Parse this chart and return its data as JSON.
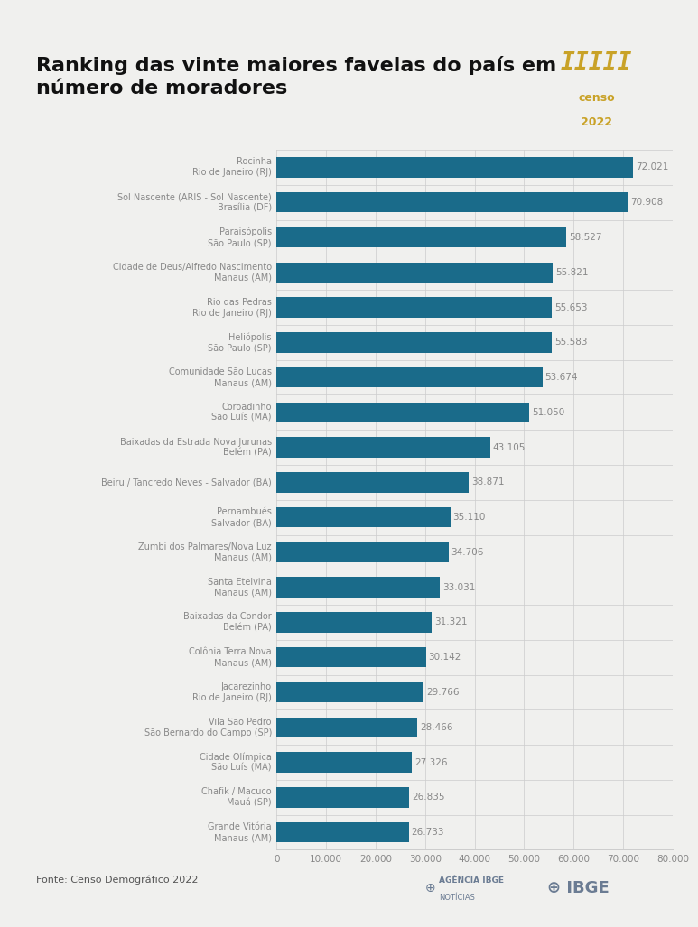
{
  "title": "Ranking das vinte maiores favelas do país em\nnúmero de moradores",
  "title_fontsize": 16,
  "bar_color": "#1a6b8a",
  "value_color": "#888888",
  "label_color": "#888888",
  "bg_color": "#f0f0ee",
  "fonte": "Fonte: Censo Demográfico 2022",
  "categories": [
    "Rocinha\nRio de Janeiro (RJ)",
    "Sol Nascente (ARIS - Sol Nascente)\nBrasília (DF)",
    "Paraisópolis\nSão Paulo (SP)",
    "Cidade de Deus/Alfredo Nascimento\nManaus (AM)",
    "Rio das Pedras\nRio de Janeiro (RJ)",
    "Heliópolis\nSão Paulo (SP)",
    "Comunidade São Lucas\nManaus (AM)",
    "Coroadinho\nSão Luís (MA)",
    "Baixadas da Estrada Nova Jurunas\nBelém (PA)",
    "Beiru / Tancredo Neves - Salvador (BA)",
    "Pernambués\nSalvador (BA)",
    "Zumbi dos Palmares/Nova Luz\nManaus (AM)",
    "Santa Etelvina\nManaus (AM)",
    "Baixadas da Condor\nBelém (PA)",
    "Colônia Terra Nova\nManaus (AM)",
    "Jacarezinho\nRio de Janeiro (RJ)",
    "Vila São Pedro\nSão Bernardo do Campo (SP)",
    "Cidade Olímpica\nSão Luís (MA)",
    "Chafik / Macuco\nMauá (SP)",
    "Grande Vitória\nManaus (AM)"
  ],
  "values": [
    72021,
    70908,
    58527,
    55821,
    55653,
    55583,
    53674,
    51050,
    43105,
    38871,
    35110,
    34706,
    33031,
    31321,
    30142,
    29766,
    28466,
    27326,
    26835,
    26733
  ],
  "value_labels": [
    "72.021",
    "70.908",
    "58.527",
    "55.821",
    "55.653",
    "55.583",
    "53.674",
    "51.050",
    "43.105",
    "38.871",
    "35.110",
    "34.706",
    "33.031",
    "31.321",
    "30.142",
    "29.766",
    "28.466",
    "27.326",
    "26.835",
    "26.733"
  ],
  "xlim": [
    0,
    80000
  ],
  "xticks": [
    0,
    10000,
    20000,
    30000,
    40000,
    50000,
    60000,
    70000,
    80000
  ],
  "xtick_labels": [
    "0",
    "10.000",
    "20.000",
    "30.000",
    "40.000",
    "50.000",
    "60.000",
    "70.000",
    "80.000"
  ]
}
